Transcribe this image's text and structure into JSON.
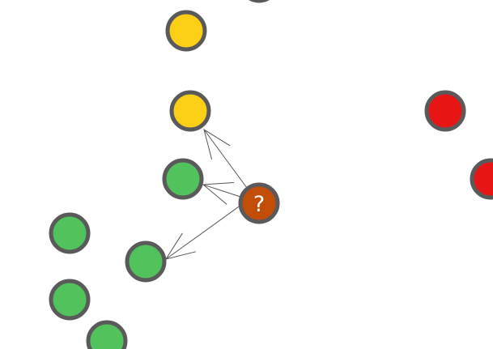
{
  "colors": {
    "yellow": "#fccf17",
    "green": "#52c25c",
    "red": "#e81515",
    "query": "#c24d06",
    "outline": "#5a5a5a",
    "edge": "#555555"
  },
  "query_node": {
    "label": "?",
    "color_key": "query"
  },
  "nodes": [
    {
      "name": "node-gray-top",
      "color_key": "green",
      "class": "green"
    },
    {
      "name": "node-yellow-1",
      "color_key": "yellow",
      "class": "yellow"
    },
    {
      "name": "node-yellow-2",
      "color_key": "yellow",
      "class": "yellow"
    },
    {
      "name": "node-green-1",
      "color_key": "green",
      "class": "green"
    },
    {
      "name": "node-green-2",
      "color_key": "green",
      "class": "green"
    },
    {
      "name": "node-green-3",
      "color_key": "green",
      "class": "green"
    },
    {
      "name": "node-green-4",
      "color_key": "green",
      "class": "green"
    },
    {
      "name": "node-green-5",
      "color_key": "green",
      "class": "green"
    },
    {
      "name": "node-red-1",
      "color_key": "red",
      "class": "red"
    },
    {
      "name": "node-red-2",
      "color_key": "red",
      "class": "red"
    }
  ],
  "edges": [
    {
      "name": "edge-query-to-yellow-2",
      "from": "query",
      "to": "node-yellow-2"
    },
    {
      "name": "edge-query-to-green-1",
      "from": "query",
      "to": "node-green-1"
    },
    {
      "name": "edge-query-to-green-3",
      "from": "query",
      "to": "node-green-3"
    }
  ]
}
